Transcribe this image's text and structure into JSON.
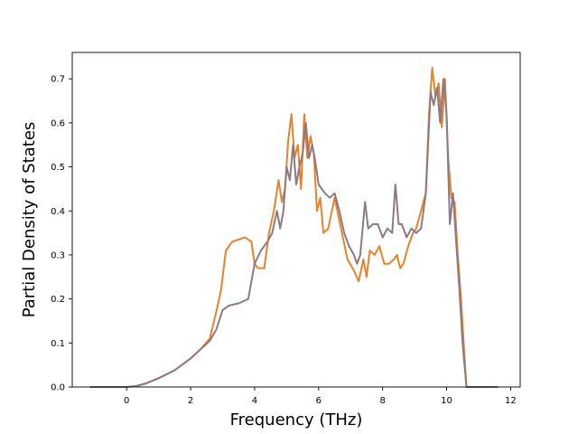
{
  "chart_data": {
    "type": "line",
    "title": "",
    "xlabel": "Frequency (THz)",
    "ylabel": "Partial Density of States",
    "xlim": [
      -1.7,
      12.3
    ],
    "ylim": [
      0.0,
      0.76
    ],
    "xticks": [
      0,
      2,
      4,
      6,
      8,
      10,
      12
    ],
    "yticks": [
      0.0,
      0.1,
      0.2,
      0.3,
      0.4,
      0.5,
      0.6,
      0.7
    ],
    "ytick_labels": [
      "0.0",
      "0.1",
      "0.2",
      "0.3",
      "0.4",
      "0.5",
      "0.6",
      "0.7"
    ],
    "grid": false,
    "legend": "none",
    "series": [
      {
        "color": "#e6822a",
        "x": [
          -1.15,
          0.0,
          0.3,
          0.6,
          1.0,
          1.5,
          2.0,
          2.3,
          2.6,
          2.8,
          2.95,
          3.1,
          3.3,
          3.5,
          3.7,
          3.9,
          4.0,
          4.1,
          4.3,
          4.45,
          4.6,
          4.75,
          4.85,
          4.95,
          5.05,
          5.15,
          5.25,
          5.35,
          5.45,
          5.55,
          5.65,
          5.75,
          5.85,
          5.95,
          6.05,
          6.15,
          6.3,
          6.5,
          6.7,
          6.9,
          7.1,
          7.25,
          7.4,
          7.5,
          7.6,
          7.75,
          7.9,
          8.05,
          8.2,
          8.35,
          8.45,
          8.55,
          8.65,
          8.8,
          8.95,
          9.05,
          9.2,
          9.35,
          9.45,
          9.55,
          9.65,
          9.75,
          9.85,
          9.95,
          10.05,
          10.15,
          10.25,
          10.35,
          10.45,
          10.55,
          10.62,
          11.6
        ],
        "y": [
          0.0,
          0.0,
          0.002,
          0.008,
          0.02,
          0.038,
          0.065,
          0.085,
          0.11,
          0.17,
          0.22,
          0.31,
          0.33,
          0.335,
          0.34,
          0.33,
          0.28,
          0.27,
          0.27,
          0.35,
          0.4,
          0.47,
          0.42,
          0.45,
          0.56,
          0.62,
          0.52,
          0.55,
          0.45,
          0.62,
          0.52,
          0.57,
          0.53,
          0.4,
          0.43,
          0.35,
          0.36,
          0.43,
          0.36,
          0.29,
          0.265,
          0.24,
          0.29,
          0.25,
          0.31,
          0.3,
          0.32,
          0.28,
          0.28,
          0.29,
          0.3,
          0.27,
          0.28,
          0.32,
          0.35,
          0.36,
          0.4,
          0.44,
          0.62,
          0.725,
          0.66,
          0.69,
          0.59,
          0.7,
          0.52,
          0.43,
          0.42,
          0.3,
          0.2,
          0.08,
          0.0,
          0.0
        ]
      },
      {
        "color": "#8c7a83",
        "x": [
          -1.15,
          0.0,
          0.3,
          0.6,
          1.0,
          1.5,
          2.0,
          2.3,
          2.6,
          2.8,
          3.0,
          3.2,
          3.5,
          3.8,
          3.9,
          4.0,
          4.2,
          4.4,
          4.55,
          4.7,
          4.8,
          4.9,
          5.0,
          5.1,
          5.2,
          5.3,
          5.4,
          5.5,
          5.6,
          5.7,
          5.8,
          5.9,
          6.0,
          6.1,
          6.2,
          6.35,
          6.5,
          6.65,
          6.8,
          6.95,
          7.1,
          7.2,
          7.3,
          7.45,
          7.55,
          7.7,
          7.85,
          8.0,
          8.15,
          8.3,
          8.4,
          8.5,
          8.6,
          8.75,
          8.9,
          9.05,
          9.2,
          9.35,
          9.5,
          9.6,
          9.7,
          9.8,
          9.9,
          10.0,
          10.1,
          10.2,
          10.3,
          10.4,
          10.5,
          10.62,
          11.6
        ],
        "y": [
          0.0,
          0.0,
          0.002,
          0.008,
          0.02,
          0.038,
          0.065,
          0.085,
          0.105,
          0.13,
          0.175,
          0.185,
          0.19,
          0.2,
          0.24,
          0.28,
          0.31,
          0.33,
          0.35,
          0.4,
          0.36,
          0.4,
          0.5,
          0.47,
          0.55,
          0.46,
          0.5,
          0.53,
          0.6,
          0.52,
          0.55,
          0.51,
          0.46,
          0.45,
          0.44,
          0.43,
          0.44,
          0.4,
          0.35,
          0.32,
          0.3,
          0.28,
          0.3,
          0.42,
          0.36,
          0.37,
          0.37,
          0.34,
          0.36,
          0.35,
          0.46,
          0.37,
          0.37,
          0.34,
          0.36,
          0.35,
          0.36,
          0.44,
          0.67,
          0.64,
          0.68,
          0.6,
          0.7,
          0.62,
          0.37,
          0.44,
          0.33,
          0.22,
          0.1,
          0.0,
          0.0
        ]
      }
    ]
  }
}
